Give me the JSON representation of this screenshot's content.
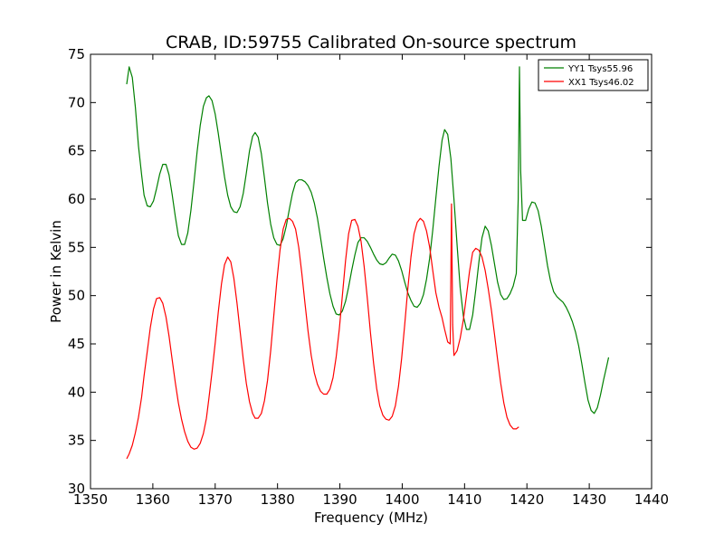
{
  "chart_data": {
    "type": "line",
    "title": "CRAB, ID:59755 Calibrated On-source spectrum",
    "xlabel": "Frequency (MHz)",
    "ylabel": "Power in Kelvin",
    "xlim": [
      1350,
      1440
    ],
    "ylim": [
      30,
      75
    ],
    "xticks": [
      1350,
      1360,
      1370,
      1380,
      1390,
      1400,
      1410,
      1420,
      1430,
      1440
    ],
    "yticks": [
      30,
      35,
      40,
      45,
      50,
      55,
      60,
      65,
      70,
      75
    ],
    "grid": false,
    "legend_position": "top-right",
    "series": [
      {
        "name": "YY1 Tsys55.96",
        "color": "#008000",
        "points": [
          [
            1355.8,
            71.9
          ],
          [
            1356.2,
            73.7
          ],
          [
            1356.7,
            72.6
          ],
          [
            1357.2,
            69.5
          ],
          [
            1357.7,
            65.5
          ],
          [
            1358.2,
            62.5
          ],
          [
            1358.6,
            60.4
          ],
          [
            1359.1,
            59.3
          ],
          [
            1359.6,
            59.2
          ],
          [
            1360.1,
            59.8
          ],
          [
            1360.6,
            61.1
          ],
          [
            1361.1,
            62.6
          ],
          [
            1361.6,
            63.6
          ],
          [
            1362.1,
            63.6
          ],
          [
            1362.6,
            62.5
          ],
          [
            1363.1,
            60.5
          ],
          [
            1363.6,
            58.2
          ],
          [
            1364.1,
            56.2
          ],
          [
            1364.6,
            55.3
          ],
          [
            1365.1,
            55.3
          ],
          [
            1365.6,
            56.5
          ],
          [
            1366.1,
            58.8
          ],
          [
            1366.6,
            61.8
          ],
          [
            1367.1,
            64.9
          ],
          [
            1367.6,
            67.6
          ],
          [
            1368.1,
            69.6
          ],
          [
            1368.6,
            70.5
          ],
          [
            1369.0,
            70.7
          ],
          [
            1369.5,
            70.2
          ],
          [
            1370.0,
            68.8
          ],
          [
            1370.5,
            66.8
          ],
          [
            1371.0,
            64.5
          ],
          [
            1371.5,
            62.3
          ],
          [
            1372.0,
            60.4
          ],
          [
            1372.5,
            59.2
          ],
          [
            1373.0,
            58.7
          ],
          [
            1373.5,
            58.6
          ],
          [
            1374.0,
            59.2
          ],
          [
            1374.5,
            60.6
          ],
          [
            1375.0,
            62.7
          ],
          [
            1375.5,
            65.0
          ],
          [
            1376.0,
            66.5
          ],
          [
            1376.4,
            66.9
          ],
          [
            1376.9,
            66.4
          ],
          [
            1377.4,
            64.7
          ],
          [
            1377.9,
            62.2
          ],
          [
            1378.4,
            59.6
          ],
          [
            1378.9,
            57.4
          ],
          [
            1379.4,
            56.0
          ],
          [
            1379.9,
            55.3
          ],
          [
            1380.4,
            55.2
          ],
          [
            1380.9,
            55.9
          ],
          [
            1381.4,
            57.2
          ],
          [
            1381.9,
            59.0
          ],
          [
            1382.4,
            60.6
          ],
          [
            1382.9,
            61.7
          ],
          [
            1383.4,
            62.0
          ],
          [
            1383.9,
            62.0
          ],
          [
            1384.4,
            61.8
          ],
          [
            1384.9,
            61.4
          ],
          [
            1385.4,
            60.7
          ],
          [
            1385.9,
            59.6
          ],
          [
            1386.4,
            58.0
          ],
          [
            1386.9,
            56.0
          ],
          [
            1387.4,
            53.9
          ],
          [
            1387.9,
            51.9
          ],
          [
            1388.4,
            50.2
          ],
          [
            1388.9,
            48.9
          ],
          [
            1389.4,
            48.1
          ],
          [
            1389.9,
            48.0
          ],
          [
            1390.4,
            48.4
          ],
          [
            1390.9,
            49.4
          ],
          [
            1391.4,
            50.9
          ],
          [
            1391.9,
            52.6
          ],
          [
            1392.4,
            54.2
          ],
          [
            1392.9,
            55.5
          ],
          [
            1393.4,
            56.0
          ],
          [
            1393.9,
            56.0
          ],
          [
            1394.4,
            55.6
          ],
          [
            1394.9,
            55.0
          ],
          [
            1395.4,
            54.3
          ],
          [
            1395.9,
            53.7
          ],
          [
            1396.4,
            53.3
          ],
          [
            1396.9,
            53.2
          ],
          [
            1397.4,
            53.4
          ],
          [
            1397.9,
            53.9
          ],
          [
            1398.4,
            54.3
          ],
          [
            1398.9,
            54.2
          ],
          [
            1399.4,
            53.6
          ],
          [
            1399.9,
            52.6
          ],
          [
            1400.4,
            51.4
          ],
          [
            1400.9,
            50.3
          ],
          [
            1401.4,
            49.5
          ],
          [
            1401.9,
            48.9
          ],
          [
            1402.4,
            48.8
          ],
          [
            1402.9,
            49.2
          ],
          [
            1403.4,
            50.1
          ],
          [
            1403.9,
            51.7
          ],
          [
            1404.4,
            53.9
          ],
          [
            1404.9,
            56.8
          ],
          [
            1405.4,
            60.1
          ],
          [
            1405.9,
            63.4
          ],
          [
            1406.4,
            66.1
          ],
          [
            1406.8,
            67.2
          ],
          [
            1407.3,
            66.7
          ],
          [
            1407.8,
            64.2
          ],
          [
            1408.3,
            60.0
          ],
          [
            1408.8,
            55.2
          ],
          [
            1409.3,
            50.8
          ],
          [
            1409.8,
            47.9
          ],
          [
            1410.3,
            46.5
          ],
          [
            1410.8,
            46.5
          ],
          [
            1411.3,
            48.0
          ],
          [
            1411.8,
            50.6
          ],
          [
            1412.3,
            53.5
          ],
          [
            1412.8,
            56.0
          ],
          [
            1413.3,
            57.2
          ],
          [
            1413.8,
            56.7
          ],
          [
            1414.3,
            55.2
          ],
          [
            1414.8,
            53.3
          ],
          [
            1415.3,
            51.4
          ],
          [
            1415.8,
            50.1
          ],
          [
            1416.3,
            49.6
          ],
          [
            1416.8,
            49.7
          ],
          [
            1417.3,
            50.2
          ],
          [
            1417.8,
            51.0
          ],
          [
            1418.3,
            52.3
          ],
          [
            1418.6,
            60.0
          ],
          [
            1418.8,
            73.7
          ],
          [
            1419.0,
            63.0
          ],
          [
            1419.3,
            57.8
          ],
          [
            1419.8,
            57.8
          ],
          [
            1420.3,
            59.0
          ],
          [
            1420.8,
            59.7
          ],
          [
            1421.3,
            59.6
          ],
          [
            1421.8,
            58.8
          ],
          [
            1422.3,
            57.2
          ],
          [
            1422.8,
            55.2
          ],
          [
            1423.3,
            53.1
          ],
          [
            1423.8,
            51.5
          ],
          [
            1424.3,
            50.4
          ],
          [
            1424.8,
            49.9
          ],
          [
            1425.3,
            49.6
          ],
          [
            1425.8,
            49.3
          ],
          [
            1426.3,
            48.8
          ],
          [
            1426.8,
            48.1
          ],
          [
            1427.3,
            47.3
          ],
          [
            1427.8,
            46.2
          ],
          [
            1428.3,
            44.8
          ],
          [
            1428.8,
            43.0
          ],
          [
            1429.3,
            41.0
          ],
          [
            1429.8,
            39.2
          ],
          [
            1430.3,
            38.1
          ],
          [
            1430.8,
            37.8
          ],
          [
            1431.3,
            38.4
          ],
          [
            1431.8,
            39.7
          ],
          [
            1432.3,
            41.3
          ],
          [
            1432.8,
            42.7
          ],
          [
            1433.1,
            43.6
          ]
        ]
      },
      {
        "name": "XX1 Tsys46.02",
        "color": "#ff0000",
        "points": [
          [
            1355.8,
            33.1
          ],
          [
            1356.2,
            33.6
          ],
          [
            1356.7,
            34.5
          ],
          [
            1357.2,
            35.8
          ],
          [
            1357.7,
            37.4
          ],
          [
            1358.2,
            39.5
          ],
          [
            1358.6,
            41.7
          ],
          [
            1359.1,
            44.2
          ],
          [
            1359.6,
            46.7
          ],
          [
            1360.1,
            48.6
          ],
          [
            1360.6,
            49.7
          ],
          [
            1361.1,
            49.8
          ],
          [
            1361.6,
            49.2
          ],
          [
            1362.1,
            47.8
          ],
          [
            1362.6,
            45.8
          ],
          [
            1363.1,
            43.4
          ],
          [
            1363.6,
            41.0
          ],
          [
            1364.1,
            38.9
          ],
          [
            1364.6,
            37.2
          ],
          [
            1365.1,
            35.9
          ],
          [
            1365.6,
            34.9
          ],
          [
            1366.1,
            34.3
          ],
          [
            1366.6,
            34.1
          ],
          [
            1367.1,
            34.2
          ],
          [
            1367.6,
            34.7
          ],
          [
            1368.1,
            35.7
          ],
          [
            1368.6,
            37.3
          ],
          [
            1369.0,
            39.4
          ],
          [
            1369.5,
            42.1
          ],
          [
            1370.0,
            45.1
          ],
          [
            1370.5,
            48.3
          ],
          [
            1371.0,
            51.2
          ],
          [
            1371.5,
            53.2
          ],
          [
            1372.0,
            54.0
          ],
          [
            1372.5,
            53.5
          ],
          [
            1373.0,
            51.8
          ],
          [
            1373.5,
            49.2
          ],
          [
            1374.0,
            46.3
          ],
          [
            1374.5,
            43.4
          ],
          [
            1375.0,
            40.9
          ],
          [
            1375.5,
            39.0
          ],
          [
            1376.0,
            37.8
          ],
          [
            1376.4,
            37.3
          ],
          [
            1376.9,
            37.3
          ],
          [
            1377.4,
            37.8
          ],
          [
            1377.9,
            39.1
          ],
          [
            1378.4,
            41.2
          ],
          [
            1378.9,
            44.3
          ],
          [
            1379.4,
            47.9
          ],
          [
            1379.9,
            51.6
          ],
          [
            1380.4,
            54.7
          ],
          [
            1380.9,
            56.9
          ],
          [
            1381.4,
            57.9
          ],
          [
            1381.9,
            58.0
          ],
          [
            1382.4,
            57.7
          ],
          [
            1382.9,
            56.9
          ],
          [
            1383.4,
            55.0
          ],
          [
            1383.9,
            52.3
          ],
          [
            1384.4,
            49.2
          ],
          [
            1384.9,
            46.3
          ],
          [
            1385.4,
            43.8
          ],
          [
            1385.9,
            42.0
          ],
          [
            1386.4,
            40.8
          ],
          [
            1386.9,
            40.1
          ],
          [
            1387.4,
            39.8
          ],
          [
            1387.9,
            39.8
          ],
          [
            1388.4,
            40.3
          ],
          [
            1388.9,
            41.5
          ],
          [
            1389.4,
            43.6
          ],
          [
            1389.9,
            46.5
          ],
          [
            1390.4,
            50.0
          ],
          [
            1390.9,
            53.6
          ],
          [
            1391.4,
            56.4
          ],
          [
            1391.9,
            57.8
          ],
          [
            1392.4,
            57.9
          ],
          [
            1392.9,
            57.2
          ],
          [
            1393.4,
            55.6
          ],
          [
            1393.9,
            53.0
          ],
          [
            1394.4,
            49.7
          ],
          [
            1394.9,
            46.2
          ],
          [
            1395.4,
            43.0
          ],
          [
            1395.9,
            40.4
          ],
          [
            1396.4,
            38.6
          ],
          [
            1396.9,
            37.6
          ],
          [
            1397.4,
            37.2
          ],
          [
            1397.9,
            37.1
          ],
          [
            1398.4,
            37.5
          ],
          [
            1398.9,
            38.6
          ],
          [
            1399.4,
            40.6
          ],
          [
            1399.9,
            43.5
          ],
          [
            1400.4,
            47.0
          ],
          [
            1400.9,
            50.7
          ],
          [
            1401.4,
            54.0
          ],
          [
            1401.9,
            56.4
          ],
          [
            1402.4,
            57.6
          ],
          [
            1402.9,
            58.0
          ],
          [
            1403.4,
            57.7
          ],
          [
            1403.9,
            56.7
          ],
          [
            1404.4,
            55.0
          ],
          [
            1404.9,
            52.6
          ],
          [
            1405.4,
            50.3
          ],
          [
            1405.9,
            48.8
          ],
          [
            1406.4,
            47.7
          ],
          [
            1406.8,
            46.5
          ],
          [
            1407.3,
            45.2
          ],
          [
            1407.7,
            45.0
          ],
          [
            1407.9,
            59.5
          ],
          [
            1408.1,
            47.0
          ],
          [
            1408.3,
            43.8
          ],
          [
            1408.8,
            44.3
          ],
          [
            1409.3,
            45.6
          ],
          [
            1409.8,
            47.5
          ],
          [
            1410.3,
            50.0
          ],
          [
            1410.8,
            52.5
          ],
          [
            1411.3,
            54.5
          ],
          [
            1411.8,
            54.9
          ],
          [
            1412.3,
            54.7
          ],
          [
            1412.8,
            54.0
          ],
          [
            1413.3,
            52.6
          ],
          [
            1413.8,
            50.7
          ],
          [
            1414.3,
            48.5
          ],
          [
            1414.8,
            46.0
          ],
          [
            1415.3,
            43.4
          ],
          [
            1415.8,
            40.9
          ],
          [
            1416.3,
            38.9
          ],
          [
            1416.8,
            37.4
          ],
          [
            1417.3,
            36.6
          ],
          [
            1417.8,
            36.2
          ],
          [
            1418.3,
            36.2
          ],
          [
            1418.7,
            36.4
          ]
        ]
      }
    ]
  }
}
